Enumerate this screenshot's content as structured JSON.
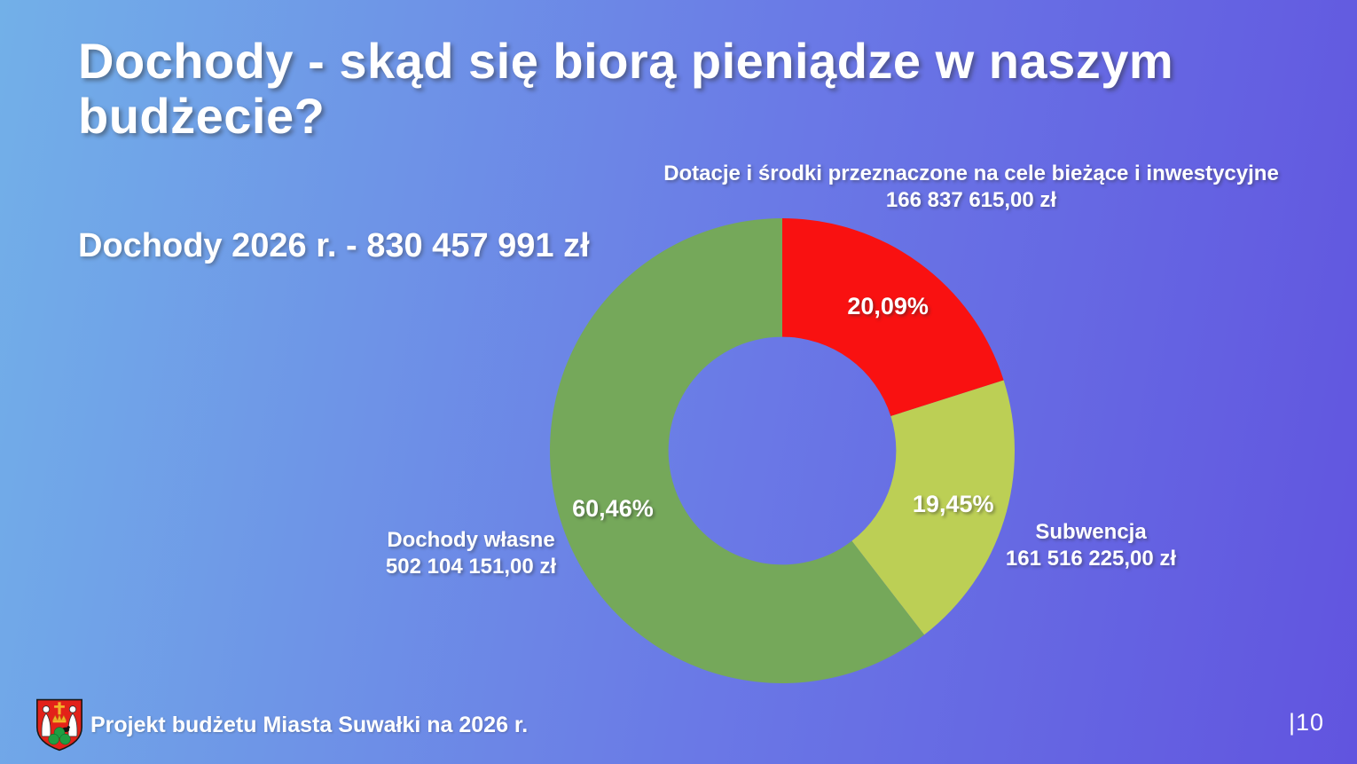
{
  "slide": {
    "title": "Dochody - skąd się biorą pieniądze w naszym budżecie?",
    "subtitle": "Dochody 2026 r. - 830 457 991 zł",
    "footer": "Projekt budżetu Miasta Suwałki na 2026 r.",
    "page_number": "|10"
  },
  "chart_data": {
    "type": "pie",
    "variant": "donut",
    "title": "Dochody 2026 r.",
    "total_text": "830 457 991 zł",
    "start_angle_deg": 0,
    "direction": "clockwise",
    "inner_radius_ratio": 0.49,
    "legend": "none",
    "slices": [
      {
        "label": "Dotacje i środki przeznaczone na cele bieżące i inwestycyjne",
        "value": 166837615.0,
        "value_text": "166 837 615,00 zł",
        "percent": 20.09,
        "percent_text": "20,09%",
        "color": "#f91111"
      },
      {
        "label": "Subwencja",
        "value": 161516225.0,
        "value_text": "161 516 225,00 zł",
        "percent": 19.45,
        "percent_text": "19,45%",
        "color": "#bccf55"
      },
      {
        "label": "Dochody własne",
        "value": 502104151.0,
        "value_text": "502 104 151,00 zł",
        "percent": 60.46,
        "percent_text": "60,46%",
        "color": "#75a85a"
      }
    ],
    "colors": {
      "background_gradient_start": "#72b0e8",
      "background_gradient_end": "#6154df",
      "text": "#ffffff"
    }
  }
}
